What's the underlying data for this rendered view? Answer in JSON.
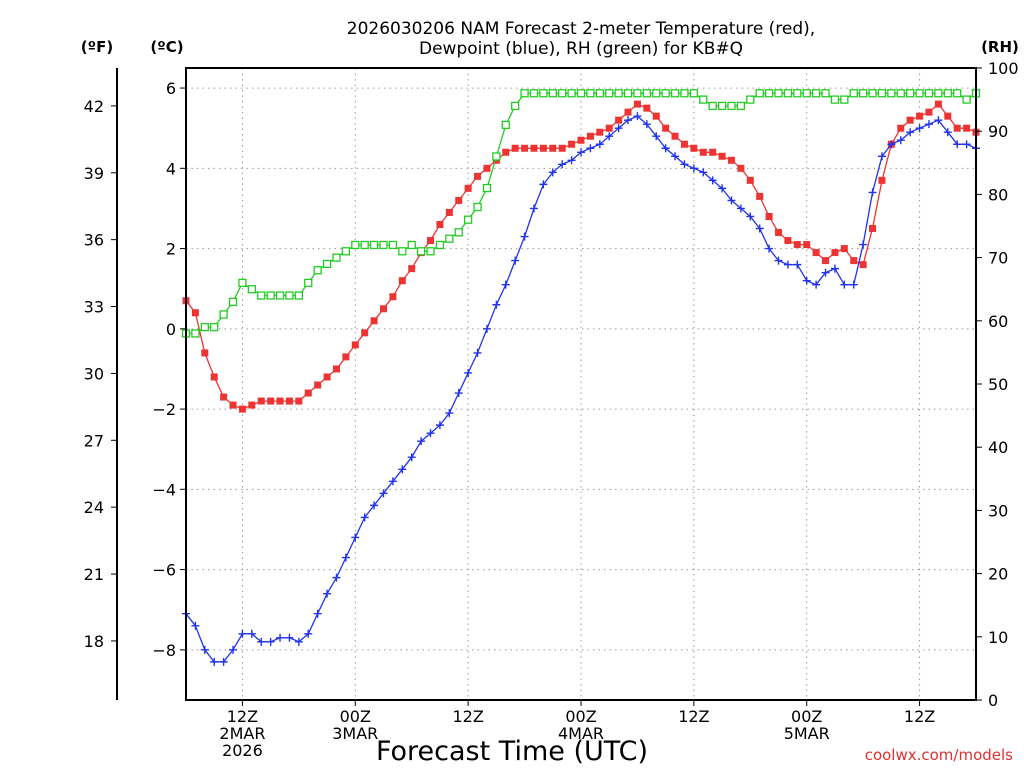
{
  "chart_data": {
    "type": "line",
    "title_lines": [
      "2026030206 NAM Forecast 2-meter Temperature (red),",
      "Dewpoint (blue), RH (green) for KB#Q"
    ],
    "xlabel": "Forecast Time (UTC)",
    "credit": "coolwx.com/models",
    "x_unit": "hours since 2026-03-02 06Z",
    "xlim": [
      0,
      84
    ],
    "x_ticks": [
      {
        "x": 6,
        "lines": [
          "12Z",
          "2MAR",
          "2026"
        ]
      },
      {
        "x": 18,
        "lines": [
          "00Z",
          "3MAR"
        ]
      },
      {
        "x": 30,
        "lines": [
          "12Z"
        ]
      },
      {
        "x": 42,
        "lines": [
          "00Z",
          "4MAR"
        ]
      },
      {
        "x": 54,
        "lines": [
          "12Z"
        ]
      },
      {
        "x": 66,
        "lines": [
          "00Z",
          "5MAR"
        ]
      },
      {
        "x": 78,
        "lines": [
          "12Z"
        ]
      }
    ],
    "axis_units": {
      "f": "(ºF)",
      "c": "(ºC)",
      "rh": "(RH)"
    },
    "c_axis": {
      "lim": [
        -9.25,
        6.5
      ],
      "ticks": [
        6,
        4,
        2,
        0,
        -2,
        -4,
        -6,
        -8
      ],
      "tick_labels": [
        "6",
        "4",
        "2",
        "0",
        "−2",
        "−4",
        "−6",
        "−8"
      ]
    },
    "f_axis": {
      "ticks": [
        42,
        39,
        36,
        33,
        30,
        27,
        24,
        21,
        18
      ],
      "tick_labels": [
        "42",
        "39",
        "36",
        "33",
        "30",
        "27",
        "24",
        "21",
        "18"
      ]
    },
    "rh_axis": {
      "lim": [
        0,
        100
      ],
      "ticks": [
        100,
        90,
        80,
        70,
        60,
        50,
        40,
        30,
        20,
        10,
        0
      ],
      "tick_labels": [
        "100",
        "90",
        "80",
        "70",
        "60",
        "50",
        "40",
        "30",
        "20",
        "10",
        "0"
      ]
    },
    "grid": true,
    "series": [
      {
        "name": "Temperature",
        "unit": "C",
        "color": "#ee3333",
        "marker": "filled-square",
        "x": [
          0,
          1,
          2,
          3,
          4,
          5,
          6,
          7,
          8,
          9,
          10,
          11,
          12,
          13,
          14,
          15,
          16,
          17,
          18,
          19,
          20,
          21,
          22,
          23,
          24,
          25,
          26,
          27,
          28,
          29,
          30,
          31,
          32,
          33,
          34,
          35,
          36,
          37,
          38,
          39,
          40,
          41,
          42,
          43,
          44,
          45,
          46,
          47,
          48,
          49,
          50,
          51,
          52,
          53,
          54,
          55,
          56,
          57,
          58,
          59,
          60,
          61,
          62,
          63,
          64,
          65,
          66,
          67,
          68,
          69,
          70,
          71,
          72,
          73,
          74,
          75,
          76,
          77,
          78,
          79,
          80,
          81,
          82,
          83,
          84
        ],
        "values": [
          0.7,
          0.4,
          -0.6,
          -1.2,
          -1.7,
          -1.9,
          -2.0,
          -1.9,
          -1.8,
          -1.8,
          -1.8,
          -1.8,
          -1.8,
          -1.6,
          -1.4,
          -1.2,
          -1.0,
          -0.7,
          -0.4,
          -0.1,
          0.2,
          0.5,
          0.8,
          1.2,
          1.5,
          1.9,
          2.2,
          2.6,
          2.9,
          3.2,
          3.5,
          3.8,
          4.0,
          4.2,
          4.4,
          4.5,
          4.5,
          4.5,
          4.5,
          4.5,
          4.5,
          4.6,
          4.7,
          4.8,
          4.9,
          5.0,
          5.2,
          5.4,
          5.6,
          5.5,
          5.3,
          5.0,
          4.8,
          4.6,
          4.5,
          4.4,
          4.4,
          4.3,
          4.2,
          4.0,
          3.7,
          3.3,
          2.8,
          2.4,
          2.2,
          2.1,
          2.1,
          1.9,
          1.7,
          1.9,
          2.0,
          1.7,
          1.6,
          2.5,
          3.7,
          4.6,
          5.0,
          5.2,
          5.3,
          5.4,
          5.6,
          5.3,
          5.0,
          5.0,
          4.9
        ]
      },
      {
        "name": "Dewpoint",
        "unit": "C",
        "color": "#2233ee",
        "marker": "plus",
        "x": [
          0,
          1,
          2,
          3,
          4,
          5,
          6,
          7,
          8,
          9,
          10,
          11,
          12,
          13,
          14,
          15,
          16,
          17,
          18,
          19,
          20,
          21,
          22,
          23,
          24,
          25,
          26,
          27,
          28,
          29,
          30,
          31,
          32,
          33,
          34,
          35,
          36,
          37,
          38,
          39,
          40,
          41,
          42,
          43,
          44,
          45,
          46,
          47,
          48,
          49,
          50,
          51,
          52,
          53,
          54,
          55,
          56,
          57,
          58,
          59,
          60,
          61,
          62,
          63,
          64,
          65,
          66,
          67,
          68,
          69,
          70,
          71,
          72,
          73,
          74,
          75,
          76,
          77,
          78,
          79,
          80,
          81,
          82,
          83,
          84
        ],
        "values": [
          -7.1,
          -7.4,
          -8.0,
          -8.3,
          -8.3,
          -8.0,
          -7.6,
          -7.6,
          -7.8,
          -7.8,
          -7.7,
          -7.7,
          -7.8,
          -7.6,
          -7.1,
          -6.6,
          -6.2,
          -5.7,
          -5.2,
          -4.7,
          -4.4,
          -4.1,
          -3.8,
          -3.5,
          -3.2,
          -2.8,
          -2.6,
          -2.4,
          -2.1,
          -1.6,
          -1.1,
          -0.6,
          0.0,
          0.6,
          1.1,
          1.7,
          2.3,
          3.0,
          3.6,
          3.9,
          4.1,
          4.2,
          4.4,
          4.5,
          4.6,
          4.8,
          5.0,
          5.2,
          5.3,
          5.1,
          4.8,
          4.5,
          4.3,
          4.1,
          4.0,
          3.9,
          3.7,
          3.5,
          3.2,
          3.0,
          2.8,
          2.5,
          2.0,
          1.7,
          1.6,
          1.6,
          1.2,
          1.1,
          1.4,
          1.5,
          1.1,
          1.1,
          2.1,
          3.4,
          4.3,
          4.6,
          4.7,
          4.9,
          5.0,
          5.1,
          5.2,
          4.9,
          4.6,
          4.6,
          4.5
        ]
      },
      {
        "name": "RH",
        "unit": "%",
        "color": "#22cc22",
        "marker": "open-square",
        "x": [
          0,
          1,
          2,
          3,
          4,
          5,
          6,
          7,
          8,
          9,
          10,
          11,
          12,
          13,
          14,
          15,
          16,
          17,
          18,
          19,
          20,
          21,
          22,
          23,
          24,
          25,
          26,
          27,
          28,
          29,
          30,
          31,
          32,
          33,
          34,
          35,
          36,
          37,
          38,
          39,
          40,
          41,
          42,
          43,
          44,
          45,
          46,
          47,
          48,
          49,
          50,
          51,
          52,
          53,
          54,
          55,
          56,
          57,
          58,
          59,
          60,
          61,
          62,
          63,
          64,
          65,
          66,
          67,
          68,
          69,
          70,
          71,
          72,
          73,
          74,
          75,
          76,
          77,
          78,
          79,
          80,
          81,
          82,
          83,
          84
        ],
        "values": [
          58,
          58,
          59,
          59,
          61,
          63,
          66,
          65,
          64,
          64,
          64,
          64,
          64,
          66,
          68,
          69,
          70,
          71,
          72,
          72,
          72,
          72,
          72,
          71,
          72,
          71,
          71,
          72,
          73,
          74,
          76,
          78,
          81,
          86,
          91,
          94,
          96,
          96,
          96,
          96,
          96,
          96,
          96,
          96,
          96,
          96,
          96,
          96,
          96,
          96,
          96,
          96,
          96,
          96,
          96,
          95,
          94,
          94,
          94,
          94,
          95,
          96,
          96,
          96,
          96,
          96,
          96,
          96,
          96,
          95,
          95,
          96,
          96,
          96,
          96,
          96,
          96,
          96,
          96,
          96,
          96,
          96,
          96,
          95,
          96
        ]
      }
    ]
  }
}
